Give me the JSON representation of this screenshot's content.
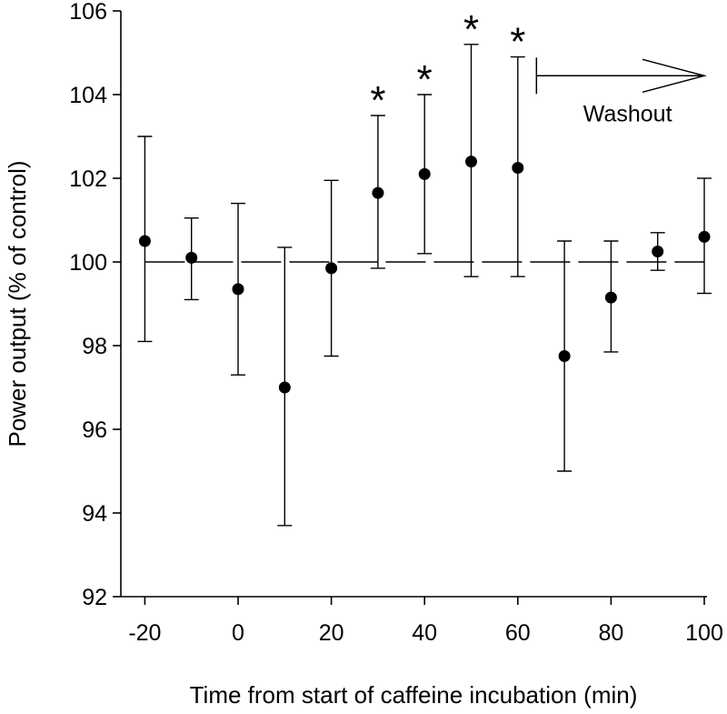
{
  "chart_data": {
    "type": "scatter",
    "title": "",
    "xlabel": "Time from start of caffeine incubation (min)",
    "ylabel": "Power output (% of control)",
    "xlim": [
      -25,
      100
    ],
    "ylim": [
      92,
      106
    ],
    "x_ticks": [
      -20,
      0,
      20,
      40,
      60,
      80,
      100
    ],
    "y_ticks": [
      92,
      94,
      96,
      98,
      100,
      102,
      104,
      106
    ],
    "reference_line": 100,
    "grid": false,
    "series": [
      {
        "name": "Power output",
        "points": [
          {
            "x": -20,
            "y": 100.5,
            "err_low": 98.1,
            "err_high": 103.0
          },
          {
            "x": -10,
            "y": 100.1,
            "err_low": 99.1,
            "err_high": 101.05
          },
          {
            "x": 0,
            "y": 99.35,
            "err_low": 97.3,
            "err_high": 101.4
          },
          {
            "x": 10,
            "y": 97.0,
            "err_low": 93.7,
            "err_high": 100.35
          },
          {
            "x": 20,
            "y": 99.85,
            "err_low": 97.75,
            "err_high": 101.95
          },
          {
            "x": 30,
            "y": 101.65,
            "err_low": 99.85,
            "err_high": 103.5
          },
          {
            "x": 40,
            "y": 102.1,
            "err_low": 100.2,
            "err_high": 104.0
          },
          {
            "x": 50,
            "y": 102.4,
            "err_low": 99.65,
            "err_high": 105.2
          },
          {
            "x": 60,
            "y": 102.25,
            "err_low": 99.65,
            "err_high": 104.9
          },
          {
            "x": 70,
            "y": 97.75,
            "err_low": 95.0,
            "err_high": 100.5
          },
          {
            "x": 80,
            "y": 99.15,
            "err_low": 97.85,
            "err_high": 100.5
          },
          {
            "x": 90,
            "y": 100.25,
            "err_low": 99.8,
            "err_high": 100.7
          },
          {
            "x": 100,
            "y": 100.6,
            "err_low": 99.25,
            "err_high": 102.0
          }
        ]
      }
    ],
    "significance": {
      "marker": "*",
      "x": [
        30,
        40,
        50,
        60
      ]
    },
    "annotations": [
      {
        "text": "Washout",
        "type": "arrow",
        "x_start": 64,
        "x_end": 100,
        "y": 104.45
      }
    ]
  }
}
